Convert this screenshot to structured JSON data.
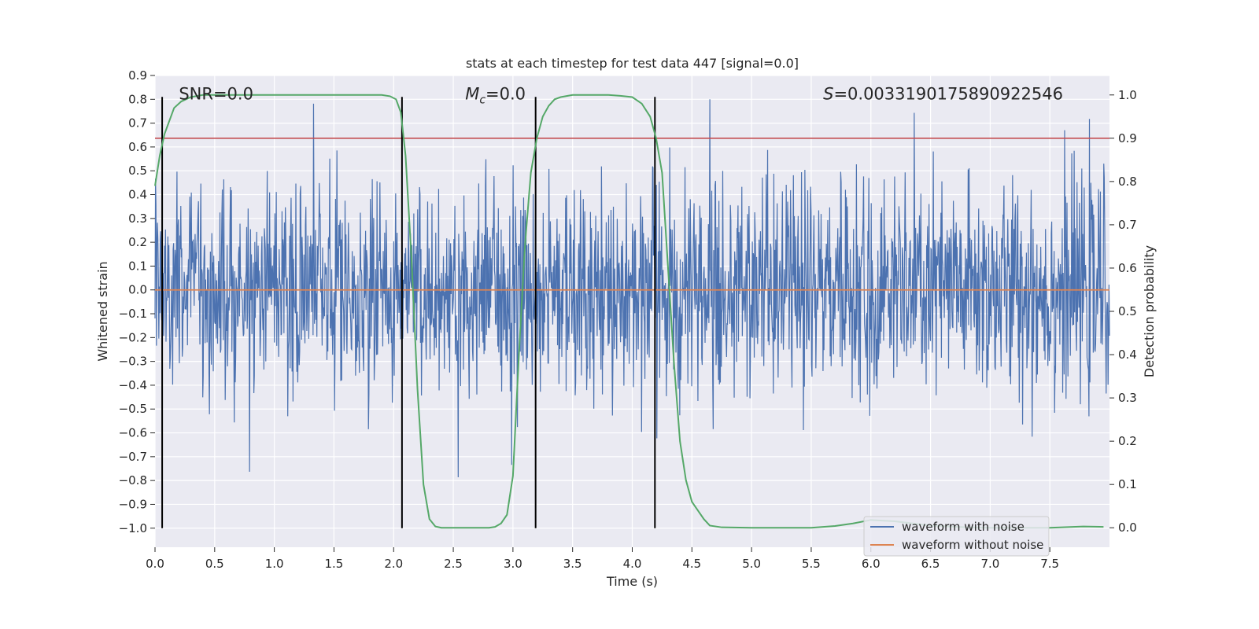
{
  "chart_data": {
    "type": "line",
    "title": "stats at each timestep for test data 447 [signal=0.0]",
    "xlabel": "Time (s)",
    "ylabel": "Whitened strain",
    "y2label": "Detection probability",
    "xlim": [
      0.0,
      8.0
    ],
    "ylim": [
      -1.08,
      0.9
    ],
    "y2lim": [
      -0.045,
      1.045
    ],
    "x_ticks": [
      0.0,
      0.5,
      1.0,
      1.5,
      2.0,
      2.5,
      3.0,
      3.5,
      4.0,
      4.5,
      5.0,
      5.5,
      6.0,
      6.5,
      7.0,
      7.5
    ],
    "x_tick_labels": [
      "0.0",
      "0.5",
      "1.0",
      "1.5",
      "2.0",
      "2.5",
      "3.0",
      "3.5",
      "4.0",
      "4.5",
      "5.0",
      "5.5",
      "6.0",
      "6.5",
      "7.0",
      "7.5"
    ],
    "y_ticks": [
      0.9,
      0.8,
      0.7,
      0.6,
      0.5,
      0.4,
      0.3,
      0.2,
      0.1,
      0.0,
      -0.1,
      -0.2,
      -0.3,
      -0.4,
      -0.5,
      -0.6,
      -0.7,
      -0.8,
      -0.9,
      -1.0
    ],
    "y_tick_labels": [
      "0.9",
      "0.8",
      "0.7",
      "0.6",
      "0.5",
      "0.4",
      "0.3",
      "0.2",
      "0.1",
      "0.0",
      "−0.1",
      "−0.2",
      "−0.3",
      "−0.4",
      "−0.5",
      "−0.6",
      "−0.7",
      "−0.8",
      "−0.9",
      "−1.0"
    ],
    "y2_ticks": [
      1.0,
      0.9,
      0.8,
      0.7,
      0.6,
      0.5,
      0.4,
      0.3,
      0.2,
      0.1,
      0.0
    ],
    "y2_tick_labels": [
      "1.0",
      "0.9",
      "0.8",
      "0.7",
      "0.6",
      "0.5",
      "0.4",
      "0.3",
      "0.2",
      "0.1",
      "0.0"
    ],
    "grid": true,
    "colors": {
      "background": "#eaeaf2",
      "grid": "#ffffff",
      "noise": "#4c72b0",
      "clean": "#dd8452",
      "probability": "#55a868",
      "threshold": "#c44e52",
      "markers": "#000000"
    },
    "series": [
      {
        "name": "waveform with noise",
        "color": "#4c72b0",
        "typical_amplitude": 0.25,
        "peak_max": 0.8,
        "peak_min": -1.0
      },
      {
        "name": "waveform without noise",
        "color": "#dd8452",
        "constant_value": 0.0
      },
      {
        "name": "detection probability",
        "axis": "right",
        "color": "#55a868",
        "x": [
          0.0,
          0.04,
          0.08,
          0.12,
          0.16,
          0.22,
          0.3,
          0.4,
          0.6,
          1.0,
          1.5,
          1.9,
          1.97,
          2.02,
          2.06,
          2.1,
          2.15,
          2.2,
          2.25,
          2.3,
          2.35,
          2.4,
          2.45,
          2.6,
          2.8,
          2.85,
          2.9,
          2.95,
          3.0,
          3.05,
          3.1,
          3.15,
          3.2,
          3.25,
          3.3,
          3.35,
          3.4,
          3.5,
          3.6,
          3.8,
          3.9,
          4.0,
          4.08,
          4.15,
          4.2,
          4.25,
          4.3,
          4.35,
          4.4,
          4.45,
          4.5,
          4.6,
          4.65,
          4.75,
          5.0,
          5.5,
          5.7,
          5.85,
          6.0,
          6.2,
          6.5,
          6.8,
          7.0,
          7.5,
          7.78,
          7.95
        ],
        "y": [
          0.79,
          0.86,
          0.91,
          0.94,
          0.97,
          0.985,
          0.995,
          1.0,
          1.0,
          1.0,
          1.0,
          1.0,
          0.997,
          0.99,
          0.96,
          0.86,
          0.62,
          0.32,
          0.1,
          0.02,
          0.003,
          0.0,
          0.0,
          0.0,
          0.0,
          0.002,
          0.01,
          0.03,
          0.12,
          0.4,
          0.65,
          0.82,
          0.9,
          0.95,
          0.975,
          0.99,
          0.995,
          1.0,
          1.0,
          1.0,
          0.998,
          0.995,
          0.98,
          0.95,
          0.9,
          0.82,
          0.6,
          0.38,
          0.2,
          0.11,
          0.06,
          0.02,
          0.005,
          0.001,
          0.0,
          0.0,
          0.004,
          0.01,
          0.018,
          0.015,
          0.005,
          0.001,
          0.0,
          0.0,
          0.003,
          0.002
        ]
      }
    ],
    "threshold_y2": 0.9,
    "vertical_markers_x": [
      0.06,
      2.07,
      3.19,
      4.19
    ],
    "annotations": [
      {
        "text": "SNR=0.0",
        "x": 0.2,
        "y": 0.8
      },
      {
        "text_main": "M",
        "text_sub": "c",
        "text_rest": "=0.0",
        "x": 2.6,
        "y": 0.8
      },
      {
        "text_main": "S",
        "text_rest": "=0.0033190175890922546",
        "x": 5.6,
        "y": 0.8
      }
    ],
    "legend": {
      "position": "lower-right",
      "entries": [
        "waveform with noise",
        "waveform without noise"
      ]
    }
  }
}
